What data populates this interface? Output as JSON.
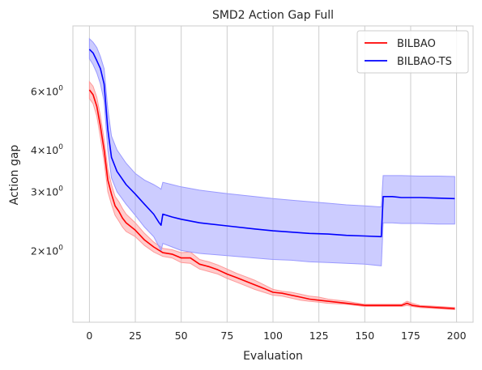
{
  "chart_data": {
    "type": "line",
    "title": "SMD2 Action Gap Full",
    "xlabel": "Evaluation",
    "ylabel": "Action gap",
    "xlim": [
      -9,
      209
    ],
    "ylim": [
      1.22,
      9.4
    ],
    "yscale": "log",
    "grid": "x-only",
    "legend_position": "top-right",
    "x_ticks": [
      0,
      25,
      50,
      75,
      100,
      125,
      150,
      175,
      200
    ],
    "x_tick_labels": [
      "0",
      "25",
      "50",
      "75",
      "100",
      "125",
      "150",
      "175",
      "200"
    ],
    "y_ticks": [
      6,
      4,
      3,
      2
    ],
    "y_tick_labels": [
      {
        "base": "6",
        "sup": "0"
      },
      {
        "base": "4",
        "sup": "0"
      },
      {
        "base": "3",
        "sup": "0"
      },
      {
        "base": "2",
        "sup": "0"
      }
    ],
    "series": [
      {
        "name": "BILBAO",
        "color": "#ff0000",
        "band_color": "#ff9999",
        "x": [
          0,
          2,
          4,
          6,
          8,
          10,
          12,
          14,
          16,
          18,
          20,
          25,
          30,
          35,
          40,
          45,
          50,
          55,
          60,
          65,
          70,
          75,
          80,
          85,
          90,
          95,
          100,
          105,
          110,
          115,
          120,
          125,
          130,
          140,
          150,
          160,
          170,
          173,
          176,
          180,
          190,
          199
        ],
        "y": [
          6.05,
          5.85,
          5.4,
          4.7,
          4.0,
          3.25,
          2.95,
          2.72,
          2.62,
          2.5,
          2.42,
          2.3,
          2.15,
          2.05,
          1.97,
          1.95,
          1.9,
          1.9,
          1.82,
          1.79,
          1.75,
          1.7,
          1.66,
          1.62,
          1.58,
          1.54,
          1.5,
          1.49,
          1.47,
          1.45,
          1.43,
          1.42,
          1.41,
          1.39,
          1.37,
          1.37,
          1.37,
          1.39,
          1.37,
          1.36,
          1.35,
          1.34
        ],
        "lower": [
          5.7,
          5.5,
          5.05,
          4.35,
          3.7,
          3.0,
          2.75,
          2.55,
          2.45,
          2.35,
          2.28,
          2.2,
          2.07,
          1.98,
          1.92,
          1.9,
          1.84,
          1.83,
          1.76,
          1.73,
          1.7,
          1.65,
          1.61,
          1.57,
          1.53,
          1.5,
          1.47,
          1.46,
          1.44,
          1.42,
          1.41,
          1.4,
          1.39,
          1.38,
          1.36,
          1.36,
          1.36,
          1.37,
          1.36,
          1.35,
          1.34,
          1.33
        ],
        "upper": [
          6.4,
          6.2,
          5.75,
          5.05,
          4.3,
          3.5,
          3.15,
          2.9,
          2.8,
          2.67,
          2.57,
          2.42,
          2.25,
          2.12,
          2.03,
          2.01,
          1.97,
          1.98,
          1.88,
          1.85,
          1.81,
          1.76,
          1.71,
          1.67,
          1.63,
          1.58,
          1.53,
          1.51,
          1.5,
          1.48,
          1.46,
          1.45,
          1.43,
          1.41,
          1.38,
          1.38,
          1.38,
          1.41,
          1.39,
          1.37,
          1.36,
          1.35
        ]
      },
      {
        "name": "BILBAO-TS",
        "color": "#0000ff",
        "band_color": "#9999ff",
        "x": [
          0,
          2,
          4,
          6,
          8,
          10,
          12,
          15,
          20,
          25,
          30,
          35,
          38,
          39,
          40,
          45,
          50,
          60,
          75,
          90,
          100,
          110,
          120,
          130,
          140,
          150,
          159,
          160,
          165,
          170,
          180,
          190,
          199
        ],
        "y": [
          8.0,
          7.8,
          7.4,
          7.0,
          6.3,
          4.6,
          3.8,
          3.45,
          3.15,
          2.95,
          2.75,
          2.57,
          2.42,
          2.38,
          2.57,
          2.52,
          2.48,
          2.42,
          2.37,
          2.32,
          2.29,
          2.27,
          2.25,
          2.24,
          2.22,
          2.21,
          2.2,
          2.9,
          2.9,
          2.88,
          2.88,
          2.87,
          2.86
        ],
        "lower": [
          7.5,
          7.2,
          6.8,
          6.3,
          5.6,
          4.0,
          3.3,
          3.0,
          2.75,
          2.55,
          2.35,
          2.2,
          2.05,
          2.0,
          2.1,
          2.05,
          2.0,
          1.96,
          1.93,
          1.9,
          1.88,
          1.87,
          1.85,
          1.84,
          1.83,
          1.82,
          1.8,
          2.42,
          2.42,
          2.41,
          2.41,
          2.4,
          2.4
        ],
        "upper": [
          8.6,
          8.4,
          8.1,
          7.6,
          7.0,
          5.3,
          4.4,
          4.0,
          3.65,
          3.4,
          3.25,
          3.15,
          3.08,
          3.05,
          3.2,
          3.15,
          3.1,
          3.03,
          2.96,
          2.9,
          2.86,
          2.83,
          2.8,
          2.77,
          2.74,
          2.72,
          2.7,
          3.35,
          3.35,
          3.35,
          3.34,
          3.34,
          3.33
        ]
      }
    ]
  }
}
